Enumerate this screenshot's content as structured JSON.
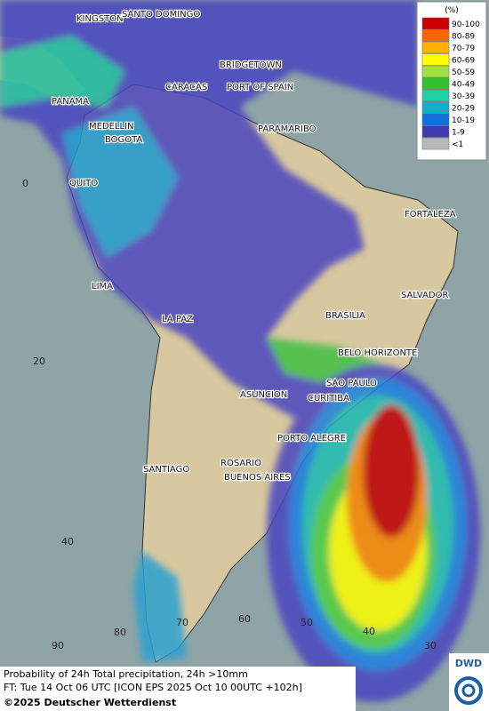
{
  "map": {
    "cities": [
      "KINGSTON",
      "SANTO DOMINGO",
      "BRIDGETOWN",
      "CARACAS",
      "PORT OF SPAIN",
      "PANAMA",
      "MEDELLIN",
      "BOGOTA",
      "PARAMARIBO",
      "QUITO",
      "FORTALEZA",
      "LIMA",
      "SALVADOR",
      "BRASILIA",
      "LA PAZ",
      "BELO HORIZONTE",
      "SAO PAULO",
      "ASUNCION",
      "CURITIBA",
      "PORTO ALEGRE",
      "ROSARIO",
      "SANTIAGO",
      "BUENOS AIRES"
    ],
    "lat_labels": [
      0,
      20,
      40
    ],
    "lon_labels": [
      90,
      80,
      70,
      60,
      50,
      40,
      30
    ]
  },
  "legend": {
    "title": "(%)",
    "entries": [
      {
        "label": "90-100",
        "color": "#c80000"
      },
      {
        "label": "80-89",
        "color": "#ff6600"
      },
      {
        "label": "70-79",
        "color": "#ffb000"
      },
      {
        "label": "60-69",
        "color": "#ffff00"
      },
      {
        "label": "50-59",
        "color": "#a0e040"
      },
      {
        "label": "40-49",
        "color": "#30c030"
      },
      {
        "label": "30-39",
        "color": "#20d0a0"
      },
      {
        "label": "20-29",
        "color": "#10b0c8"
      },
      {
        "label": "10-19",
        "color": "#1070e0"
      },
      {
        "label": "1-9",
        "color": "#4038b0"
      },
      {
        "label": "<1",
        "color": "#b8b8b8"
      }
    ]
  },
  "footer": {
    "line1": "Probability of 24h Total precipitation, 24h >10mm",
    "line2": "FT: Tue 14 Oct 06 UTC [ICON EPS 2025 Oct 10 00UTC +102h]",
    "line3": "©2025 Deutscher Wetterdienst"
  },
  "logo": "DWD"
}
